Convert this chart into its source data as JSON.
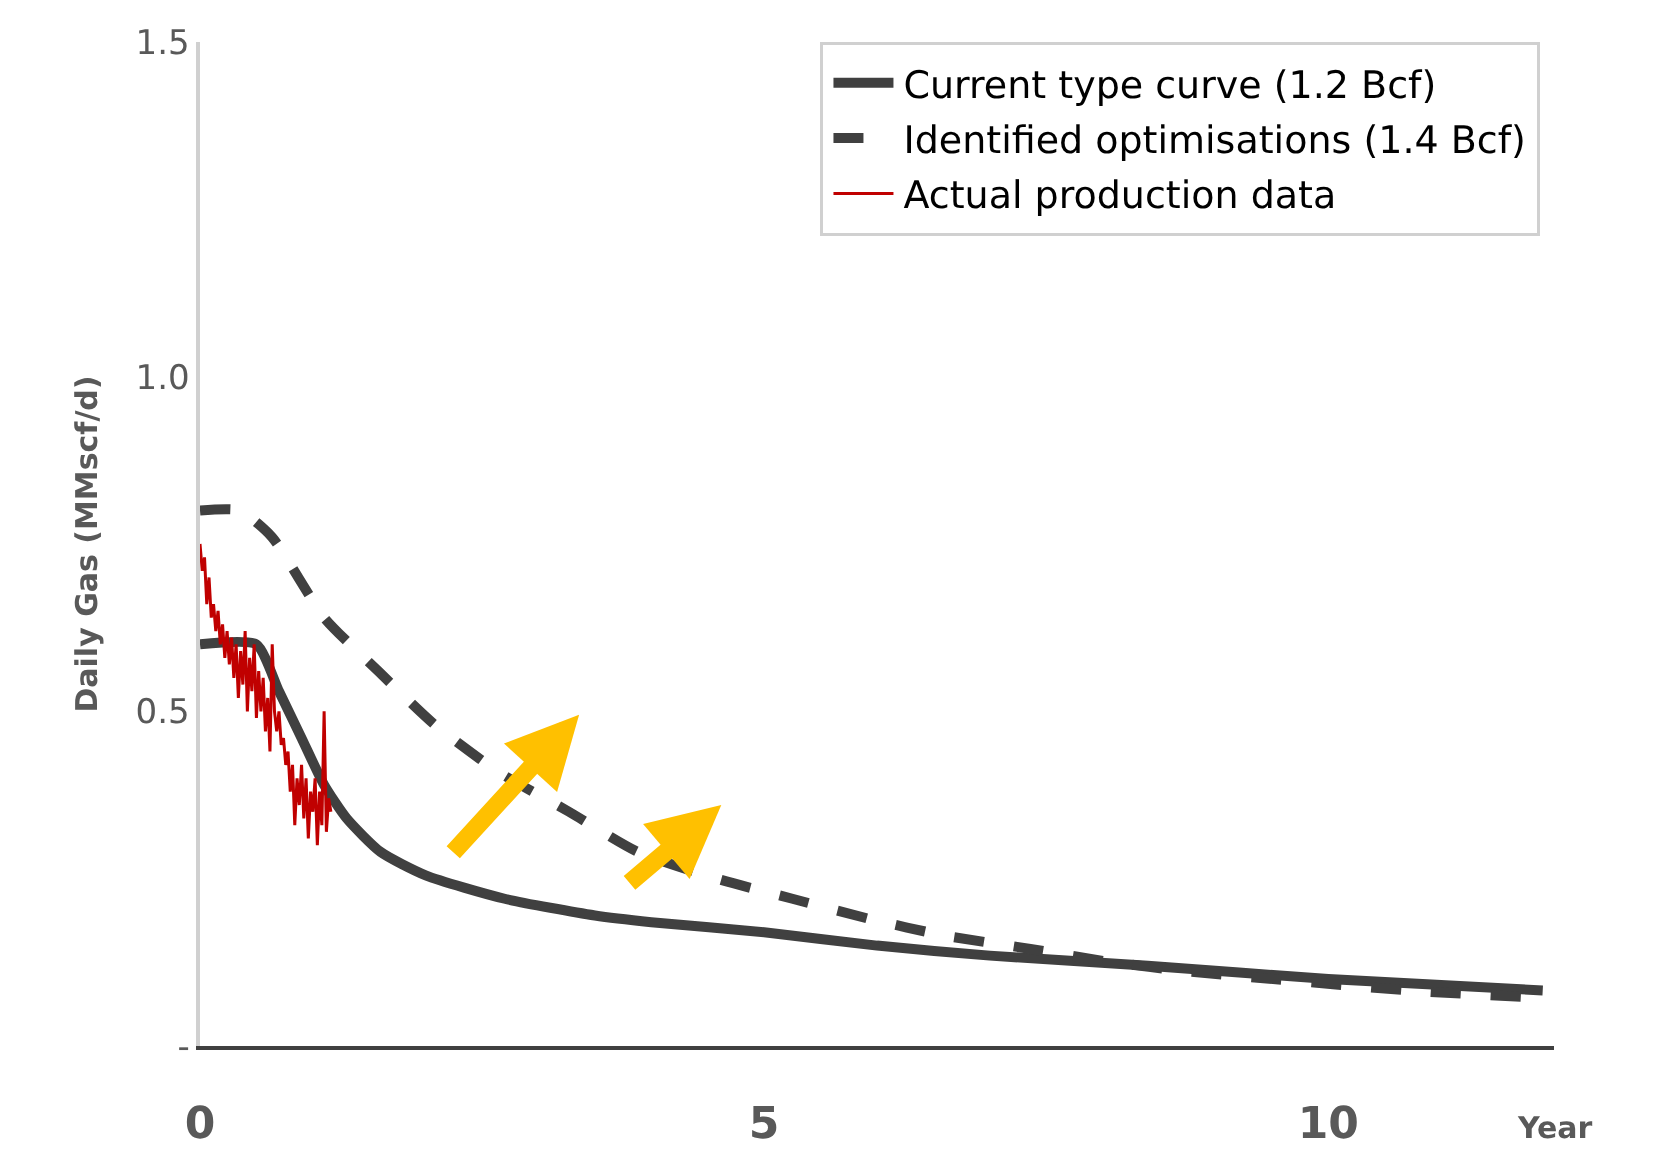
{
  "chart_data": {
    "type": "line",
    "ylabel": "Daily Gas (MMscf/d)",
    "xlabel": "Year",
    "xlim": [
      0,
      12
    ],
    "xticks": [
      0,
      5,
      10
    ],
    "ylim": [
      0,
      1.5
    ],
    "yticks": [
      {
        "value": 0,
        "label": "-"
      },
      0.5,
      {
        "value": 1.0,
        "label": "1.0"
      },
      {
        "value": 1.5,
        "label": "1.5"
      }
    ],
    "legend": "top right",
    "series": [
      {
        "name": "Current type curve (1.2 Bcf)",
        "color": "#404040",
        "line_style": "solid",
        "x": [
          0,
          0.5,
          0.7,
          0.9,
          1.1,
          1.3,
          1.6,
          2.0,
          2.7,
          3.5,
          4.0,
          5.0,
          6.0,
          7.0,
          8.4,
          10.0,
          11.9
        ],
        "values": [
          0.6,
          0.6,
          0.53,
          0.46,
          0.39,
          0.34,
          0.29,
          0.255,
          0.22,
          0.195,
          0.185,
          0.17,
          0.15,
          0.135,
          0.12,
          0.1,
          0.083
        ]
      },
      {
        "name": "Identified optimisations (1.4 Bcf)",
        "color": "#404040",
        "line_style": "dashed",
        "x": [
          0,
          0.35,
          0.64,
          1.1,
          1.58,
          2.08,
          2.64,
          3.27,
          3.88,
          4.58,
          5.25,
          5.93,
          6.6,
          7.36,
          8.05,
          8.73,
          10.8,
          11.9
        ],
        "values": [
          0.8,
          0.8,
          0.76,
          0.64,
          0.56,
          0.48,
          0.41,
          0.35,
          0.29,
          0.25,
          0.22,
          0.19,
          0.165,
          0.145,
          0.126,
          0.112,
          0.082,
          0.072
        ]
      },
      {
        "name": "Actual production data",
        "color": "#c00000",
        "line_style": "solid",
        "x": [
          0,
          0.02,
          0.04,
          0.06,
          0.08,
          0.1,
          0.12,
          0.14,
          0.16,
          0.18,
          0.2,
          0.22,
          0.24,
          0.26,
          0.28,
          0.3,
          0.32,
          0.34,
          0.36,
          0.38,
          0.4,
          0.42,
          0.44,
          0.46,
          0.48,
          0.5,
          0.52,
          0.54,
          0.56,
          0.58,
          0.6,
          0.62,
          0.64,
          0.66,
          0.68,
          0.7,
          0.72,
          0.74,
          0.76,
          0.78,
          0.8,
          0.82,
          0.84,
          0.86,
          0.88,
          0.9,
          0.92,
          0.94,
          0.96,
          0.98,
          1.0,
          1.02,
          1.04,
          1.06,
          1.08,
          1.1,
          1.12,
          1.14,
          1.16
        ],
        "values": [
          0.75,
          0.71,
          0.73,
          0.66,
          0.7,
          0.64,
          0.66,
          0.62,
          0.65,
          0.6,
          0.63,
          0.58,
          0.62,
          0.57,
          0.61,
          0.55,
          0.6,
          0.52,
          0.59,
          0.54,
          0.62,
          0.5,
          0.58,
          0.53,
          0.6,
          0.49,
          0.56,
          0.5,
          0.55,
          0.47,
          0.52,
          0.44,
          0.6,
          0.5,
          0.47,
          0.5,
          0.45,
          0.46,
          0.42,
          0.44,
          0.38,
          0.42,
          0.33,
          0.4,
          0.36,
          0.42,
          0.34,
          0.4,
          0.31,
          0.38,
          0.35,
          0.4,
          0.3,
          0.38,
          0.33,
          0.5,
          0.32,
          0.37,
          0.35
        ]
      }
    ]
  }
}
